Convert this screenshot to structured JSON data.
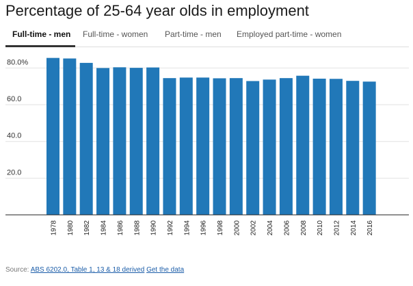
{
  "title": "Percentage of 25-64 year olds in employment",
  "tabs": [
    {
      "label": "Full-time - men",
      "active": true
    },
    {
      "label": "Full-time - women",
      "active": false
    },
    {
      "label": "Part-time - men",
      "active": false
    },
    {
      "label": "Employed part-time - women",
      "active": false
    }
  ],
  "colors": {
    "bar": "#2178b8",
    "grid": "#e2e2e2",
    "axis": "#222222",
    "tab_underline": "#333333"
  },
  "chart_data": {
    "type": "bar",
    "title": "",
    "xlabel": "",
    "ylabel": "",
    "ylim": [
      0,
      85
    ],
    "y_ticks": [
      20,
      40,
      60,
      80
    ],
    "y_tick_labels": [
      "20.0",
      "40.0",
      "60.0",
      "80.0%"
    ],
    "grid": true,
    "categories": [
      "1978",
      "1980",
      "1982",
      "1984",
      "1986",
      "1988",
      "1990",
      "1992",
      "1994",
      "1996",
      "1998",
      "2000",
      "2002",
      "2004",
      "2006",
      "2008",
      "2010",
      "2012",
      "2014",
      "2016"
    ],
    "values": [
      85.5,
      85.2,
      82.8,
      80.0,
      80.4,
      80.1,
      80.3,
      74.5,
      74.8,
      74.8,
      74.4,
      74.5,
      72.9,
      73.7,
      74.5,
      75.8,
      74.2,
      74.1,
      73.0,
      72.6
    ]
  },
  "source": {
    "prefix": "Source:",
    "link1": "ABS 6202.0, Table 1, 13 & 18 derived",
    "link2": "Get the data"
  }
}
